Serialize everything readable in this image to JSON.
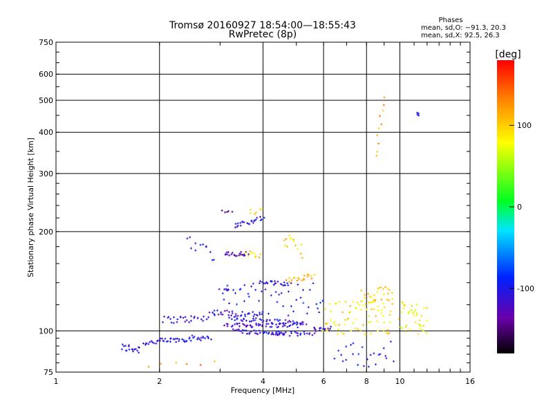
{
  "chart_data": {
    "type": "scatter",
    "title": "Tromsø 20160927 18:54:00—18:55:43",
    "subtitle": "RwPretec (8p)",
    "xlabel": "Frequency [MHz]",
    "ylabel": "Stationary phase Virtual Height [km]",
    "x_scale": "log",
    "y_scale": "log",
    "xlim": [
      1,
      16
    ],
    "ylim": [
      75,
      750
    ],
    "x_ticks": [
      1,
      2,
      4,
      6,
      8,
      10,
      16
    ],
    "x_tick_labels": [
      "1",
      "2",
      "4",
      "6",
      "8",
      "10",
      "16"
    ],
    "y_ticks": [
      75,
      100,
      200,
      300,
      400,
      500,
      600,
      750
    ],
    "y_tick_labels": [
      "75",
      "100",
      "200",
      "300",
      "400",
      "500",
      "600",
      "750"
    ],
    "grid": true,
    "phases_box": {
      "title": "Phases",
      "line_o": "mean, sd,O: −91.3, 20.3",
      "line_x": "mean, sd,X:  92.5, 26.3"
    },
    "colorbar": {
      "label": "[deg]",
      "min": -180,
      "max": 180,
      "ticks": [
        100,
        0,
        -100
      ],
      "tick_labels": [
        "100",
        "0",
        "-100"
      ]
    },
    "clusters": [
      {
        "x0": 1.55,
        "x1": 1.75,
        "h0": 89,
        "h1": 88,
        "phase": -110,
        "n": 18,
        "spread": 0.03
      },
      {
        "x0": 1.8,
        "x1": 2.8,
        "h0": 92,
        "h1": 96,
        "phase": -105,
        "n": 55,
        "spread": 0.02
      },
      {
        "x0": 2.05,
        "x1": 2.75,
        "h0": 108,
        "h1": 109,
        "phase": -115,
        "n": 28,
        "spread": 0.025
      },
      {
        "x0": 2.4,
        "x1": 2.9,
        "h0": 190,
        "h1": 170,
        "phase": -110,
        "n": 12,
        "spread": 0.05
      },
      {
        "x0": 2.8,
        "x1": 4.0,
        "h0": 114,
        "h1": 112,
        "phase": -110,
        "n": 35,
        "spread": 0.02
      },
      {
        "x0": 3.1,
        "x1": 5.2,
        "h0": 104,
        "h1": 104,
        "phase": -115,
        "n": 55,
        "spread": 0.015
      },
      {
        "x0": 3.2,
        "x1": 5.3,
        "h0": 109,
        "h1": 106,
        "phase": -110,
        "n": 45,
        "spread": 0.015
      },
      {
        "x0": 3.3,
        "x1": 4.6,
        "h0": 100,
        "h1": 98,
        "phase": -105,
        "n": 40,
        "spread": 0.015
      },
      {
        "x0": 4.3,
        "x1": 5.6,
        "h0": 98,
        "h1": 98,
        "phase": -110,
        "n": 25,
        "spread": 0.015
      },
      {
        "x0": 5.6,
        "x1": 6.3,
        "h0": 101,
        "h1": 102,
        "phase": -120,
        "n": 15,
        "spread": 0.015
      },
      {
        "x0": 3.1,
        "x1": 3.6,
        "h0": 170,
        "h1": 171,
        "phase": -130,
        "n": 22,
        "spread": 0.02
      },
      {
        "x0": 3.6,
        "x1": 3.9,
        "h0": 172,
        "h1": 168,
        "phase": 100,
        "n": 10,
        "spread": 0.02
      },
      {
        "x0": 3.1,
        "x1": 3.2,
        "h0": 133,
        "h1": 133,
        "phase": -110,
        "n": 6,
        "spread": 0.01
      },
      {
        "x0": 3.9,
        "x1": 4.8,
        "h0": 140,
        "h1": 139,
        "phase": -105,
        "n": 22,
        "spread": 0.015
      },
      {
        "x0": 4.7,
        "x1": 5.6,
        "h0": 143,
        "h1": 147,
        "phase": 110,
        "n": 20,
        "spread": 0.02
      },
      {
        "x0": 3.3,
        "x1": 4.0,
        "h0": 208,
        "h1": 220,
        "phase": -100,
        "n": 24,
        "spread": 0.015
      },
      {
        "x0": 3.65,
        "x1": 3.95,
        "h0": 228,
        "h1": 232,
        "phase": 80,
        "n": 6,
        "spread": 0.02
      },
      {
        "x0": 3.05,
        "x1": 3.25,
        "h0": 230,
        "h1": 230,
        "phase": -130,
        "n": 5,
        "spread": 0.008
      },
      {
        "x0": 4.6,
        "x1": 5.2,
        "h0": 190,
        "h1": 175,
        "phase": 100,
        "n": 14,
        "spread": 0.05
      },
      {
        "x0": 3.0,
        "x1": 6.0,
        "h0": 125,
        "h1": 125,
        "phase": -100,
        "n": 50,
        "spread": 0.12
      },
      {
        "x0": 6.0,
        "x1": 9.5,
        "h0": 110,
        "h1": 110,
        "phase": 90,
        "n": 75,
        "spread": 0.12
      },
      {
        "x0": 7.8,
        "x1": 9.5,
        "h0": 125,
        "h1": 130,
        "phase": 100,
        "n": 30,
        "spread": 0.06
      },
      {
        "x0": 6.5,
        "x1": 9.5,
        "h0": 85,
        "h1": 85,
        "phase": -100,
        "n": 25,
        "spread": 0.09
      },
      {
        "x0": 10.0,
        "x1": 12.0,
        "h0": 110,
        "h1": 110,
        "phase": 80,
        "n": 40,
        "spread": 0.12
      },
      {
        "x0": 8.5,
        "x1": 9.0,
        "h0": 340,
        "h1": 500,
        "phase": 120,
        "n": 10,
        "spread": 0.02
      },
      {
        "x0": 11.3,
        "x1": 11.3,
        "h0": 450,
        "h1": 460,
        "phase": -100,
        "n": 4,
        "spread": 0.005
      },
      {
        "x0": 1.85,
        "x1": 2.9,
        "h0": 80,
        "h1": 80,
        "phase": 130,
        "n": 6,
        "spread": 0.03
      }
    ]
  }
}
